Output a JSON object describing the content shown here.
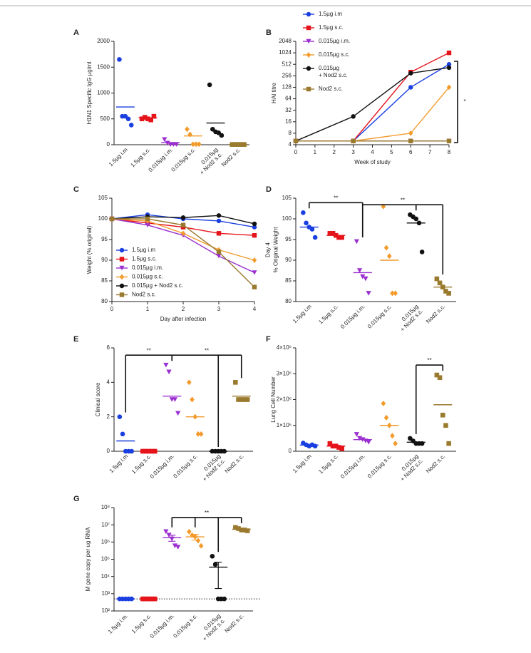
{
  "chart_data": [
    {
      "type": "strip",
      "panel": "A",
      "ylabel": "H1N1 Specific IgG µg/ml",
      "categories": [
        "1.5µg i.m",
        "1.5µg s.c.",
        "0.015µg i.m.",
        "0.015µg s.c.",
        [
          "0.015µg",
          "+ Nod2 s.c."
        ],
        "Nod2 s.c."
      ],
      "colors": [
        "#1a3fe0",
        "#e5141b",
        "#9b2fd0",
        "#f39a2b",
        "#111111",
        "#9a7a2e"
      ],
      "markers": [
        "circle",
        "square",
        "triangle-down",
        "diamond",
        "circle",
        "square"
      ],
      "points": [
        [
          1650,
          550,
          550,
          500,
          380
        ],
        [
          500,
          530,
          500,
          480,
          550
        ],
        [
          100,
          30,
          5,
          5,
          5
        ],
        [
          300,
          200,
          10,
          10,
          10
        ],
        [
          1160,
          300,
          250,
          230,
          180
        ],
        [
          5,
          5,
          5,
          5,
          5
        ]
      ],
      "means": [
        730,
        520,
        40,
        170,
        420,
        5
      ],
      "ylim": [
        0,
        2000
      ],
      "yticks": [
        0,
        500,
        1000,
        1500,
        2000
      ]
    },
    {
      "type": "line",
      "panel": "B",
      "xlabel": "Week of study",
      "ylabel": "HAI titre",
      "x": [
        0,
        3,
        6,
        8
      ],
      "xlim": [
        0,
        8
      ],
      "xticks": [
        0,
        1,
        2,
        3,
        4,
        5,
        6,
        7,
        8
      ],
      "ylog": true,
      "ylim": [
        4,
        2048
      ],
      "yticks": [
        4,
        8,
        16,
        32,
        64,
        128,
        256,
        512,
        1024,
        2048
      ],
      "legend": "upper left",
      "series": [
        {
          "name": "1.5µg i.m",
          "color": "#1a3fe0",
          "marker": "circle",
          "values": [
            5,
            5,
            128,
            512
          ]
        },
        {
          "name": "1.5µg s.c.",
          "color": "#e5141b",
          "marker": "square",
          "values": [
            5,
            5,
            320,
            1024
          ]
        },
        {
          "name": "0.015µg i.m.",
          "color": "#9b2fd0",
          "marker": "triangle-down",
          "values": [
            5,
            5,
            5,
            5
          ]
        },
        {
          "name": "0.015µg s.c.",
          "color": "#f39a2b",
          "marker": "diamond",
          "values": [
            5,
            5,
            8,
            128
          ]
        },
        {
          "name": [
            "0.015µg",
            "+ Nod2 s.c."
          ],
          "color": "#111111",
          "marker": "circle",
          "values": [
            5,
            22,
            300,
            420
          ]
        },
        {
          "name": "Nod2 s.c.",
          "color": "#9a7a2e",
          "marker": "square",
          "values": [
            5,
            5,
            5,
            5
          ]
        }
      ],
      "significance": [
        {
          "label": "*"
        }
      ]
    },
    {
      "type": "line",
      "panel": "C",
      "xlabel": "Day after infection",
      "ylabel": "Weight (% original)",
      "x": [
        0,
        1,
        2,
        3,
        4
      ],
      "xlim": [
        0,
        4
      ],
      "xticks": [
        0,
        1,
        2,
        3,
        4
      ],
      "ylim": [
        80,
        105
      ],
      "yticks": [
        80,
        85,
        90,
        95,
        100,
        105
      ],
      "legend": "lower left",
      "series": [
        {
          "name": "1.5µg i.m",
          "color": "#1a3fe0",
          "marker": "circle",
          "values": [
            100,
            101,
            100,
            99.5,
            98
          ]
        },
        {
          "name": "1.5µg s.c.",
          "color": "#e5141b",
          "marker": "square",
          "values": [
            100,
            99,
            98,
            96.5,
            96
          ]
        },
        {
          "name": "0.015µg i.m.",
          "color": "#9b2fd0",
          "marker": "triangle-down",
          "values": [
            100,
            98.5,
            96,
            91,
            87
          ]
        },
        {
          "name": "0.015µg s.c.",
          "color": "#f39a2b",
          "marker": "diamond",
          "values": [
            100,
            99.5,
            96.5,
            92.5,
            90
          ]
        },
        {
          "name": "0.015µg + Nod2 s.c.",
          "color": "#111111",
          "marker": "circle",
          "values": [
            100,
            100.5,
            100.3,
            100.8,
            98.8
          ]
        },
        {
          "name": "Nod2 s.c.",
          "color": "#9a7a2e",
          "marker": "square",
          "values": [
            100,
            100,
            98.5,
            92,
            83.5
          ]
        }
      ]
    },
    {
      "type": "strip",
      "panel": "D",
      "ylabel": [
        "Day 4",
        "% Original Weight"
      ],
      "categories": [
        "1.5µg i.m",
        "1.5µg s.c.",
        "0.015µg i.m.",
        "0.015µg s.c.",
        [
          "0.015µg",
          "+ Nod2 s.c."
        ],
        "Nod2 s.c."
      ],
      "colors": [
        "#1a3fe0",
        "#e5141b",
        "#9b2fd0",
        "#f39a2b",
        "#111111",
        "#9a7a2e"
      ],
      "markers": [
        "circle",
        "square",
        "triangle-down",
        "diamond",
        "circle",
        "square"
      ],
      "points": [
        [
          101.5,
          99,
          98,
          97.5,
          95.5
        ],
        [
          96.5,
          96.5,
          96,
          95.5,
          95.5
        ],
        [
          94.5,
          87.5,
          86,
          85.5,
          82
        ],
        [
          103,
          93,
          91,
          82,
          82
        ],
        [
          101,
          100.5,
          100,
          99,
          92
        ],
        [
          85.5,
          84.5,
          83.5,
          82.5,
          82
        ]
      ],
      "means": [
        98,
        96,
        87,
        90,
        99,
        83.5
      ],
      "ylim": [
        80,
        105
      ],
      "yticks": [
        80,
        85,
        90,
        95,
        100,
        105
      ],
      "significance": [
        {
          "from": 0,
          "to": 2,
          "label": "**"
        },
        {
          "from": 2,
          "to": 5,
          "via": [
            4
          ],
          "label": "**"
        }
      ]
    },
    {
      "type": "strip",
      "panel": "E",
      "ylabel": "Clinical score",
      "categories": [
        "1.5µg i.m",
        "1.5µg s.c.",
        "0.015µg i.m.",
        "0.015µg s.c.",
        [
          "0.015µg",
          "+ Nod2 s.c."
        ],
        "Nod2 s.c."
      ],
      "colors": [
        "#1a3fe0",
        "#e5141b",
        "#9b2fd0",
        "#f39a2b",
        "#111111",
        "#9a7a2e"
      ],
      "markers": [
        "circle",
        "square",
        "triangle-down",
        "diamond",
        "circle",
        "square"
      ],
      "points": [
        [
          2,
          1,
          0,
          0,
          0
        ],
        [
          0,
          0,
          0,
          0,
          0
        ],
        [
          5,
          4.6,
          3,
          3,
          2.2
        ],
        [
          4,
          3,
          2,
          1,
          1
        ],
        [
          0,
          0,
          0,
          0,
          0
        ],
        [
          4,
          3,
          3,
          3,
          3
        ]
      ],
      "means": [
        0.6,
        0,
        3.2,
        2,
        0,
        3.2
      ],
      "ylim": [
        0,
        6
      ],
      "yticks": [
        0,
        2,
        4,
        6
      ],
      "significance": [
        {
          "from": 0,
          "to": 2,
          "label": "**"
        },
        {
          "from": 2,
          "to": 5,
          "via": [
            4
          ],
          "label": "**"
        }
      ]
    },
    {
      "type": "strip",
      "panel": "F",
      "ylabel": "Lung Cell Number",
      "categories": [
        "1.5µg i.m",
        "1.5µg s.c.",
        "0.015µg i.m.",
        "0.015µg s.c.",
        [
          "0.015µg",
          "+ Nod2 s.c."
        ],
        "Nod2 s.c."
      ],
      "colors": [
        "#1a3fe0",
        "#e5141b",
        "#9b2fd0",
        "#f39a2b",
        "#111111",
        "#9a7a2e"
      ],
      "markers": [
        "circle",
        "square",
        "triangle-down",
        "diamond",
        "circle",
        "square"
      ],
      "points": [
        [
          320000,
          250000,
          200000,
          250000,
          200000
        ],
        [
          300000,
          200000,
          200000,
          150000,
          100000
        ],
        [
          650000,
          500000,
          450000,
          400000,
          350000
        ],
        [
          1850000,
          1300000,
          1000000,
          600000,
          300000
        ],
        [
          500000,
          400000,
          300000,
          300000,
          300000
        ],
        [
          2950000,
          2850000,
          1400000,
          1000000,
          300000
        ]
      ],
      "means": [
        240000,
        200000,
        450000,
        1000000,
        350000,
        1800000
      ],
      "ylim": [
        0,
        4000000
      ],
      "yticks": [
        0,
        {
          "value": 1000000,
          "label": "1×10⁶"
        },
        {
          "value": 2000000,
          "label": "2×10⁶"
        },
        {
          "value": 3000000,
          "label": "3×10⁶"
        },
        {
          "value": 4000000,
          "label": "4×10⁶"
        }
      ],
      "significance": [
        {
          "from": 4,
          "to": 5,
          "label": "**"
        }
      ]
    },
    {
      "type": "strip",
      "panel": "G",
      "ylabel": "M gene copy per ug RNA",
      "categories": [
        "1.5µg i.m.",
        "1.5µg s.c.",
        "0.015µg i.m.",
        "0.015µg s.c.",
        [
          "0.015µg",
          "+ Nod2 s.c."
        ],
        "Nod2 s.c."
      ],
      "colors": [
        "#1a3fe0",
        "#e5141b",
        "#9b2fd0",
        "#f39a2b",
        "#111111",
        "#9a7a2e"
      ],
      "markers": [
        "circle",
        "square",
        "triangle-down",
        "diamond",
        "circle",
        "square"
      ],
      "points": [
        [
          500,
          500,
          500,
          500,
          500
        ],
        [
          500,
          500,
          500,
          500,
          500
        ],
        [
          4000000,
          2500000,
          1500000,
          600000,
          500000
        ],
        [
          4000000,
          2500000,
          2000000,
          1200000,
          600000
        ],
        [
          150000,
          50000,
          500,
          500,
          500
        ],
        [
          7000000,
          6000000,
          5000000,
          5000000,
          4500000
        ]
      ],
      "means": [
        500,
        500,
        1800000,
        2000000,
        35000,
        5500000
      ],
      "errors": [
        0,
        0,
        700000,
        700000,
        33000,
        500000
      ],
      "hline": 500,
      "ylog": true,
      "ylim": [
        100,
        100000000
      ],
      "yticks": [
        {
          "value": 100,
          "label": "10²"
        },
        {
          "value": 1000,
          "label": "10³"
        },
        {
          "value": 10000,
          "label": "10⁴"
        },
        {
          "value": 100000,
          "label": "10⁵"
        },
        {
          "value": 1000000,
          "label": "10⁶"
        },
        {
          "value": 10000000,
          "label": "10⁷"
        },
        {
          "value": 100000000,
          "label": "10⁸"
        }
      ],
      "significance": [
        {
          "from": 2,
          "to": 5,
          "via": [
            3,
            4
          ],
          "label": "**"
        }
      ]
    }
  ]
}
